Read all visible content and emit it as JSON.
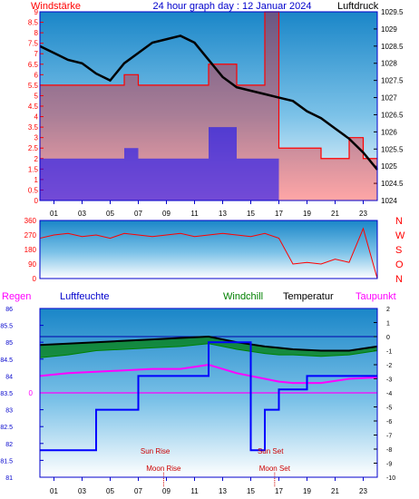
{
  "colors": {
    "wind": "#ff0000",
    "wind_avg": "#0000ff",
    "pressure": "#000000",
    "humidity": "#0000ff",
    "windchill": "#008000",
    "temperature": "#000000",
    "dewpoint": "#ff00ff",
    "rain": "#ff00ff",
    "direction": "#ff0000",
    "sun": "#cc0000",
    "moon": "#cc0000",
    "axis_text_right_top": "#000000",
    "axis_text_left_top": "#ff0000"
  },
  "header": {
    "left": "Windstärke",
    "center": "24 hour graph day : 12 Januar 2024",
    "right": "Luftdruck"
  },
  "x_ticks": [
    "01",
    "03",
    "05",
    "07",
    "09",
    "11",
    "13",
    "15",
    "17",
    "19",
    "21",
    "23"
  ],
  "panel_wind": {
    "left_ticks": [
      "0",
      "0.5",
      "1",
      "1.5",
      "2",
      "2.5",
      "3",
      "3.5",
      "4",
      "4.5",
      "5",
      "5.5",
      "6",
      "6.5",
      "7",
      "7.5",
      "8",
      "8.5",
      "9"
    ],
    "right_ticks": [
      "1024",
      "1024.5",
      "1025",
      "1025.5",
      "1026",
      "1026.5",
      "1027",
      "1027.5",
      "1028",
      "1028.5",
      "1029",
      "1029.5"
    ]
  },
  "panel_direction": {
    "left_ticks": [
      "0",
      "90",
      "180",
      "270",
      "360"
    ],
    "right_labels": [
      "N",
      "W",
      "S",
      "O",
      "N"
    ]
  },
  "panel_temp": {
    "labels": {
      "rain": "Regen",
      "humidity": "Luftfeuchte",
      "windchill": "Windchill",
      "temperature": "Temperatur",
      "dewpoint": "Taupunkt"
    },
    "left_ticks": [
      "81",
      "81.5",
      "82",
      "82.5",
      "83",
      "83.5",
      "84",
      "84.5",
      "85",
      "85.5",
      "86"
    ],
    "right_ticks": [
      "-10",
      "-9",
      "-8",
      "-7",
      "-6",
      "-5",
      "-4",
      "-3",
      "-2",
      "-1",
      "0",
      "1",
      "2"
    ],
    "rain_value_label": "0",
    "sun_rise": "Sun Rise",
    "sun_set": "Sun Set",
    "moon_rise": "Moon Rise",
    "moon_set": "Moon Set"
  },
  "chart_data": [
    {
      "type": "line",
      "title": "24 hour graph day : 12 Januar 2024",
      "x_range_hours": [
        0,
        24
      ],
      "series": [
        {
          "name": "Luftdruck",
          "axis": "right",
          "x": [
            0,
            1,
            2,
            3,
            4,
            5,
            6,
            7,
            8,
            9,
            10,
            11,
            12,
            13,
            14,
            15,
            16,
            17,
            18,
            19,
            20,
            21,
            22,
            23,
            24
          ],
          "values": [
            1028.5,
            1028.3,
            1028.1,
            1028.0,
            1027.7,
            1027.5,
            1028.0,
            1028.3,
            1028.6,
            1028.7,
            1028.8,
            1028.6,
            1028.1,
            1027.6,
            1027.3,
            1027.2,
            1027.1,
            1027.0,
            1026.9,
            1026.6,
            1026.4,
            1026.1,
            1025.8,
            1025.4,
            1024.9
          ]
        },
        {
          "name": "Windstärke",
          "axis": "left",
          "x": [
            0,
            1,
            2,
            3,
            4,
            5,
            6,
            7,
            8,
            9,
            10,
            11,
            12,
            13,
            14,
            15,
            16,
            17,
            18,
            19,
            20,
            21,
            22,
            23,
            24
          ],
          "values": [
            5.5,
            5.5,
            5.5,
            5.5,
            5.5,
            5.5,
            6.0,
            5.5,
            5.5,
            5.5,
            5.5,
            5.5,
            6.5,
            6.5,
            5.5,
            5.5,
            9.0,
            2.5,
            2.5,
            2.5,
            2.0,
            2.0,
            3.0,
            2.0,
            0.0
          ]
        },
        {
          "name": "Wind avg",
          "axis": "left",
          "x": [
            0,
            1,
            2,
            3,
            4,
            5,
            6,
            7,
            8,
            9,
            10,
            11,
            12,
            13,
            14,
            15,
            16,
            17,
            18,
            19,
            20,
            21,
            22,
            23,
            24
          ],
          "values": [
            2.0,
            2.0,
            2.0,
            2.0,
            2.0,
            2.0,
            2.5,
            2.0,
            2.0,
            2.0,
            2.0,
            2.0,
            3.5,
            3.5,
            2.0,
            2.0,
            2.0,
            0.0,
            0.0,
            0.0,
            0.0,
            0.0,
            0.0,
            0.0,
            0.0
          ]
        }
      ],
      "ylim_left": [
        0,
        9
      ],
      "ylim_right": [
        1024,
        1029.5
      ]
    },
    {
      "type": "line",
      "series": [
        {
          "name": "Windrichtung",
          "x": [
            0,
            1,
            2,
            3,
            4,
            5,
            6,
            7,
            8,
            9,
            10,
            11,
            12,
            13,
            14,
            15,
            16,
            17,
            18,
            19,
            20,
            21,
            22,
            23,
            24
          ],
          "values": [
            250,
            270,
            280,
            260,
            270,
            250,
            280,
            270,
            260,
            270,
            280,
            260,
            270,
            280,
            270,
            260,
            280,
            250,
            90,
            100,
            90,
            120,
            100,
            310,
            0
          ]
        }
      ],
      "ylim": [
        0,
        360
      ]
    },
    {
      "type": "line",
      "series": [
        {
          "name": "Luftfeuchte",
          "axis": "left",
          "x": [
            0,
            4,
            4,
            7,
            7,
            12,
            12,
            15,
            15,
            16,
            16,
            17,
            17,
            19,
            19,
            24
          ],
          "values": [
            81.8,
            81.8,
            83.0,
            83.0,
            84.0,
            84.0,
            85.0,
            85.0,
            81.8,
            81.8,
            83.0,
            83.0,
            83.6,
            83.6,
            84.0,
            84.0
          ]
        },
        {
          "name": "Windchill",
          "axis": "right",
          "x": [
            0,
            2,
            4,
            6,
            8,
            10,
            12,
            14,
            16,
            17,
            18,
            20,
            22,
            24
          ],
          "values": [
            -1.5,
            -1.3,
            -1.0,
            -0.9,
            -0.8,
            -0.7,
            -0.5,
            -0.9,
            -1.2,
            -1.3,
            -1.3,
            -1.4,
            -1.3,
            -1.0
          ]
        },
        {
          "name": "Temperatur",
          "axis": "right",
          "x": [
            0,
            2,
            4,
            6,
            8,
            10,
            12,
            14,
            16,
            17,
            18,
            20,
            22,
            24
          ],
          "values": [
            -0.6,
            -0.5,
            -0.4,
            -0.3,
            -0.2,
            -0.1,
            0.0,
            -0.4,
            -0.7,
            -0.8,
            -0.9,
            -1.0,
            -1.0,
            -0.7
          ]
        },
        {
          "name": "Taupunkt",
          "axis": "right",
          "x": [
            0,
            2,
            4,
            6,
            8,
            10,
            12,
            14,
            16,
            17,
            18,
            20,
            22,
            24
          ],
          "values": [
            -2.8,
            -2.6,
            -2.5,
            -2.4,
            -2.3,
            -2.3,
            -2.0,
            -2.6,
            -3.0,
            -3.2,
            -3.3,
            -3.3,
            -3.0,
            -2.9
          ]
        },
        {
          "name": "Regen",
          "axis": "left",
          "x": [
            0,
            24
          ],
          "values": [
            83.5,
            83.5
          ]
        }
      ],
      "ylim_left": [
        81,
        86
      ],
      "ylim_right": [
        -10,
        2
      ],
      "sun_rise_hour": 8.2,
      "sun_set_hour": 16.4,
      "moon_rise_hour": 8.8,
      "moon_set_hour": 16.7
    }
  ]
}
